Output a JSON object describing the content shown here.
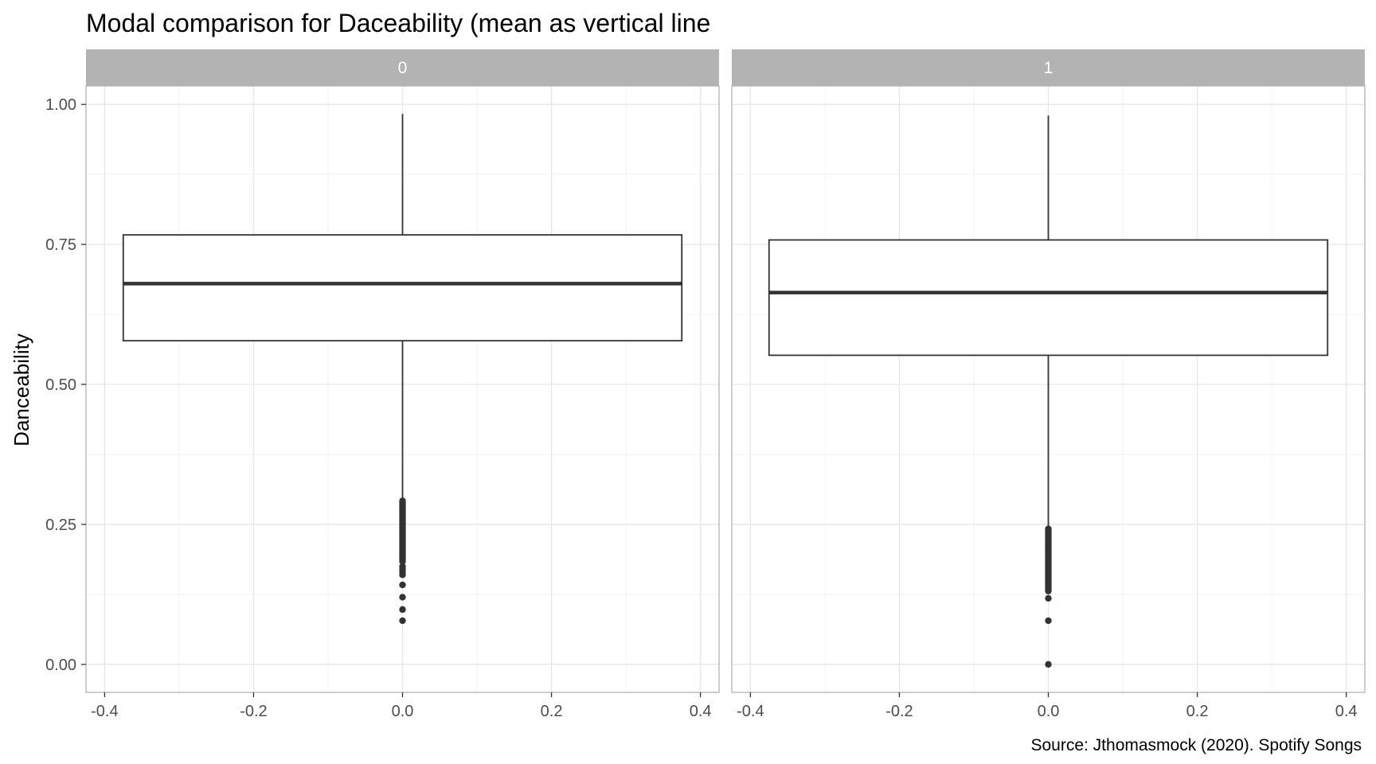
{
  "chart_data": {
    "type": "boxplot",
    "title": "Modal comparison for Daceability (mean as vertical line",
    "ylabel": "Danceability",
    "xlabel": "",
    "caption": "Source: Jthomasmock (2020). Spotify Songs",
    "xlim": [
      -0.425,
      0.425
    ],
    "ylim": [
      -0.05,
      1.033
    ],
    "x_ticks": [
      -0.4,
      -0.2,
      0.0,
      0.2,
      0.4
    ],
    "x_tick_labels": [
      "-0.4",
      "-0.2",
      "0.0",
      "0.2",
      "0.4"
    ],
    "y_ticks": [
      0.0,
      0.25,
      0.5,
      0.75,
      1.0
    ],
    "y_tick_labels": [
      "0.00",
      "0.25",
      "0.50",
      "0.75",
      "1.00"
    ],
    "grid": true,
    "colors": {
      "strip_background": "#b3b3b3",
      "panel_border": "#b3b3b3",
      "grid_major": "#e6e6e6",
      "grid_minor": "#f2f2f2",
      "box_line": "#333333"
    },
    "facets": [
      {
        "label": "0",
        "box": {
          "x_min": -0.375,
          "x_max": 0.375,
          "q1": 0.578,
          "median": 0.68,
          "q3": 0.767,
          "whisker_low": 0.296,
          "whisker_high": 0.983
        },
        "outliers": [
          0.292,
          0.289,
          0.286,
          0.283,
          0.28,
          0.277,
          0.274,
          0.271,
          0.268,
          0.265,
          0.262,
          0.259,
          0.256,
          0.253,
          0.25,
          0.247,
          0.244,
          0.241,
          0.238,
          0.235,
          0.232,
          0.229,
          0.226,
          0.223,
          0.22,
          0.217,
          0.214,
          0.211,
          0.208,
          0.205,
          0.202,
          0.199,
          0.196,
          0.193,
          0.19,
          0.187,
          0.184,
          0.175,
          0.17,
          0.165,
          0.16,
          0.142,
          0.12,
          0.098,
          0.078
        ]
      },
      {
        "label": "1",
        "box": {
          "x_min": -0.375,
          "x_max": 0.375,
          "q1": 0.552,
          "median": 0.664,
          "q3": 0.758,
          "whisker_low": 0.244,
          "whisker_high": 0.98
        },
        "outliers": [
          0.242,
          0.239,
          0.236,
          0.233,
          0.23,
          0.227,
          0.224,
          0.221,
          0.218,
          0.215,
          0.212,
          0.209,
          0.206,
          0.203,
          0.2,
          0.197,
          0.194,
          0.191,
          0.188,
          0.185,
          0.182,
          0.179,
          0.176,
          0.173,
          0.17,
          0.167,
          0.164,
          0.161,
          0.158,
          0.155,
          0.152,
          0.149,
          0.146,
          0.143,
          0.14,
          0.137,
          0.134,
          0.131,
          0.118,
          0.078,
          0.0
        ]
      }
    ]
  }
}
